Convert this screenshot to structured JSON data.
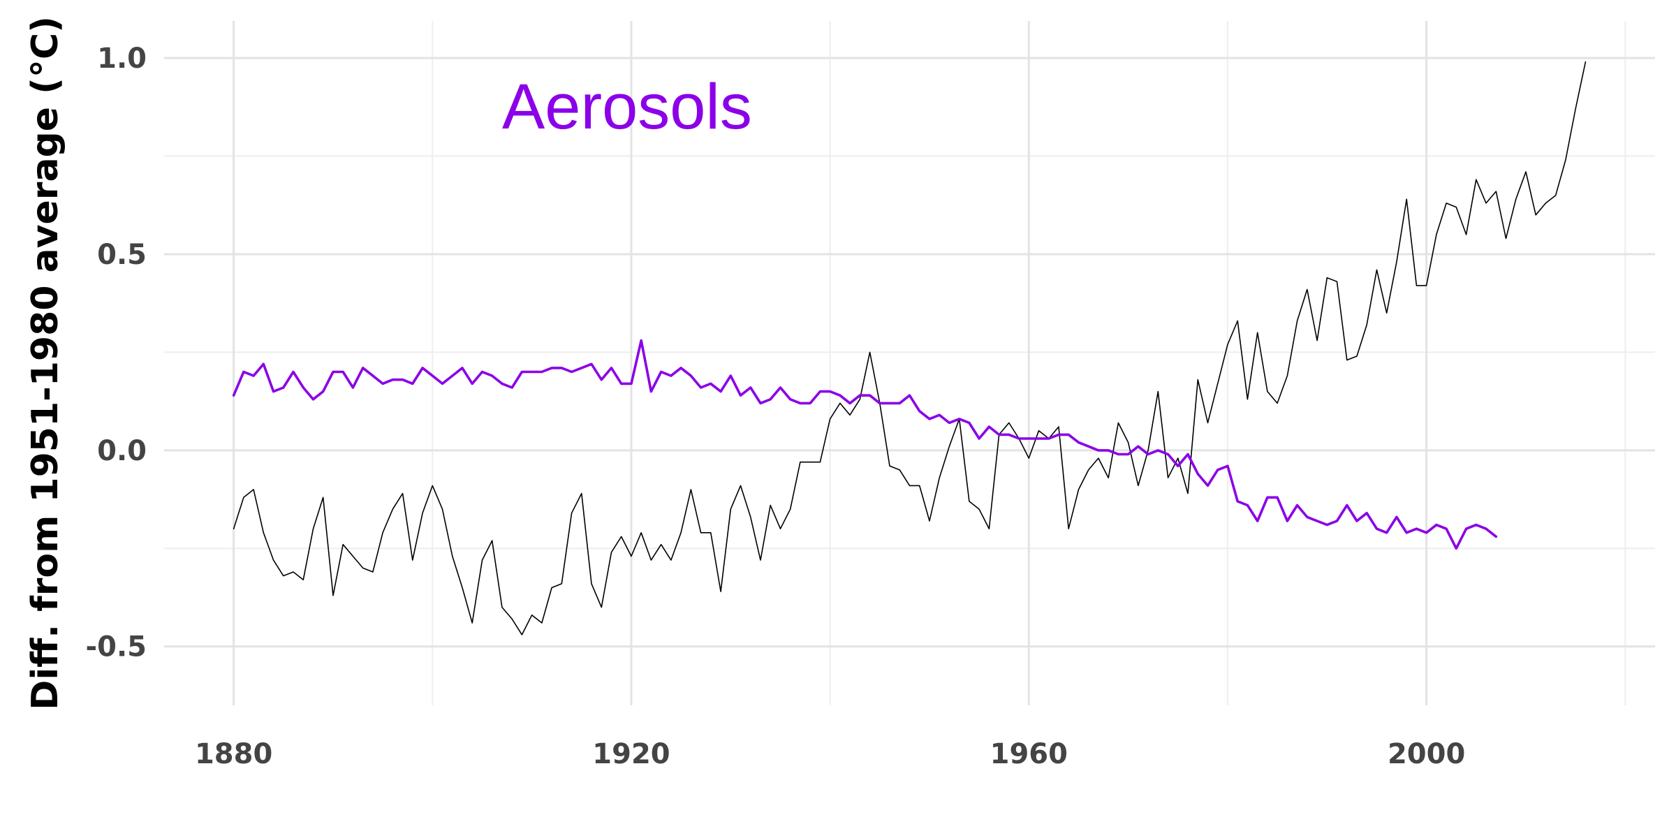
{
  "chart_data": {
    "type": "line",
    "title": "",
    "ylabel": "Diff. from 1951-1980 average (°C)",
    "xlabel": "",
    "xlim": [
      1873,
      2023
    ],
    "ylim": [
      -0.65,
      1.05
    ],
    "x_ticks": [
      1880,
      1920,
      1960,
      2000
    ],
    "x_tick_labels": [
      "1880",
      "1920",
      "1960",
      "2000"
    ],
    "x_minor_ticks": [
      1900,
      1940,
      1980,
      2020
    ],
    "y_ticks": [
      -0.5,
      0.0,
      0.5,
      1.0
    ],
    "y_tick_labels": [
      "-0.5",
      "0.0",
      "0.5",
      "1.0"
    ],
    "y_minor_ticks": [
      -0.25,
      0.25,
      0.75
    ],
    "grid": true,
    "annotation": {
      "text": "Aerosols",
      "x": 1907,
      "y": 0.82,
      "color": "#8B00E8"
    },
    "series": [
      {
        "name": "",
        "color": "#000000",
        "start_year": 1880,
        "values": [
          -0.2,
          -0.12,
          -0.1,
          -0.21,
          -0.28,
          -0.32,
          -0.31,
          -0.33,
          -0.2,
          -0.12,
          -0.37,
          -0.24,
          -0.27,
          -0.3,
          -0.31,
          -0.21,
          -0.15,
          -0.11,
          -0.28,
          -0.16,
          -0.09,
          -0.15,
          -0.27,
          -0.35,
          -0.44,
          -0.28,
          -0.23,
          -0.4,
          -0.43,
          -0.47,
          -0.42,
          -0.44,
          -0.35,
          -0.34,
          -0.16,
          -0.11,
          -0.34,
          -0.4,
          -0.26,
          -0.22,
          -0.27,
          -0.21,
          -0.28,
          -0.24,
          -0.28,
          -0.21,
          -0.1,
          -0.21,
          -0.21,
          -0.36,
          -0.15,
          -0.09,
          -0.17,
          -0.28,
          -0.14,
          -0.2,
          -0.15,
          -0.03,
          -0.03,
          -0.03,
          0.08,
          0.12,
          0.09,
          0.13,
          0.25,
          0.12,
          -0.04,
          -0.05,
          -0.09,
          -0.09,
          -0.18,
          -0.07,
          0.01,
          0.08,
          -0.13,
          -0.15,
          -0.2,
          0.04,
          0.07,
          0.03,
          -0.02,
          0.05,
          0.03,
          0.06,
          -0.2,
          -0.1,
          -0.05,
          -0.02,
          -0.07,
          0.07,
          0.02,
          -0.09,
          0.0,
          0.15,
          -0.07,
          -0.02,
          -0.11,
          0.18,
          0.07,
          0.17,
          0.27,
          0.33,
          0.13,
          0.3,
          0.15,
          0.12,
          0.19,
          0.33,
          0.41,
          0.28,
          0.44,
          0.43,
          0.23,
          0.24,
          0.32,
          0.46,
          0.35,
          0.48,
          0.64,
          0.42,
          0.42,
          0.55,
          0.63,
          0.62,
          0.55,
          0.69,
          0.63,
          0.66,
          0.54,
          0.64,
          0.71,
          0.6,
          0.63,
          0.65,
          0.74,
          0.87,
          0.99
        ]
      },
      {
        "name": "Aerosols",
        "color": "#8B00E8",
        "start_year": 1880,
        "values": [
          0.14,
          0.2,
          0.19,
          0.22,
          0.15,
          0.16,
          0.2,
          0.16,
          0.13,
          0.15,
          0.2,
          0.2,
          0.16,
          0.21,
          0.19,
          0.17,
          0.18,
          0.18,
          0.17,
          0.21,
          0.19,
          0.17,
          0.19,
          0.21,
          0.17,
          0.2,
          0.19,
          0.17,
          0.16,
          0.2,
          0.2,
          0.2,
          0.21,
          0.21,
          0.2,
          0.21,
          0.22,
          0.18,
          0.21,
          0.17,
          0.17,
          0.28,
          0.15,
          0.2,
          0.19,
          0.21,
          0.19,
          0.16,
          0.17,
          0.15,
          0.19,
          0.14,
          0.16,
          0.12,
          0.13,
          0.16,
          0.13,
          0.12,
          0.12,
          0.15,
          0.15,
          0.14,
          0.12,
          0.14,
          0.14,
          0.12,
          0.12,
          0.12,
          0.14,
          0.1,
          0.08,
          0.09,
          0.07,
          0.08,
          0.07,
          0.03,
          0.06,
          0.04,
          0.04,
          0.03,
          0.03,
          0.03,
          0.03,
          0.04,
          0.04,
          0.02,
          0.01,
          0.0,
          0.0,
          -0.01,
          -0.01,
          0.01,
          -0.01,
          0.0,
          -0.01,
          -0.04,
          -0.01,
          -0.06,
          -0.09,
          -0.05,
          -0.04,
          -0.13,
          -0.14,
          -0.18,
          -0.12,
          -0.12,
          -0.18,
          -0.14,
          -0.17,
          -0.18,
          -0.19,
          -0.18,
          -0.14,
          -0.18,
          -0.16,
          -0.2,
          -0.21,
          -0.17,
          -0.21,
          -0.2,
          -0.21,
          -0.19,
          -0.2,
          -0.25,
          -0.2,
          -0.19,
          -0.2,
          -0.22
        ]
      }
    ]
  }
}
